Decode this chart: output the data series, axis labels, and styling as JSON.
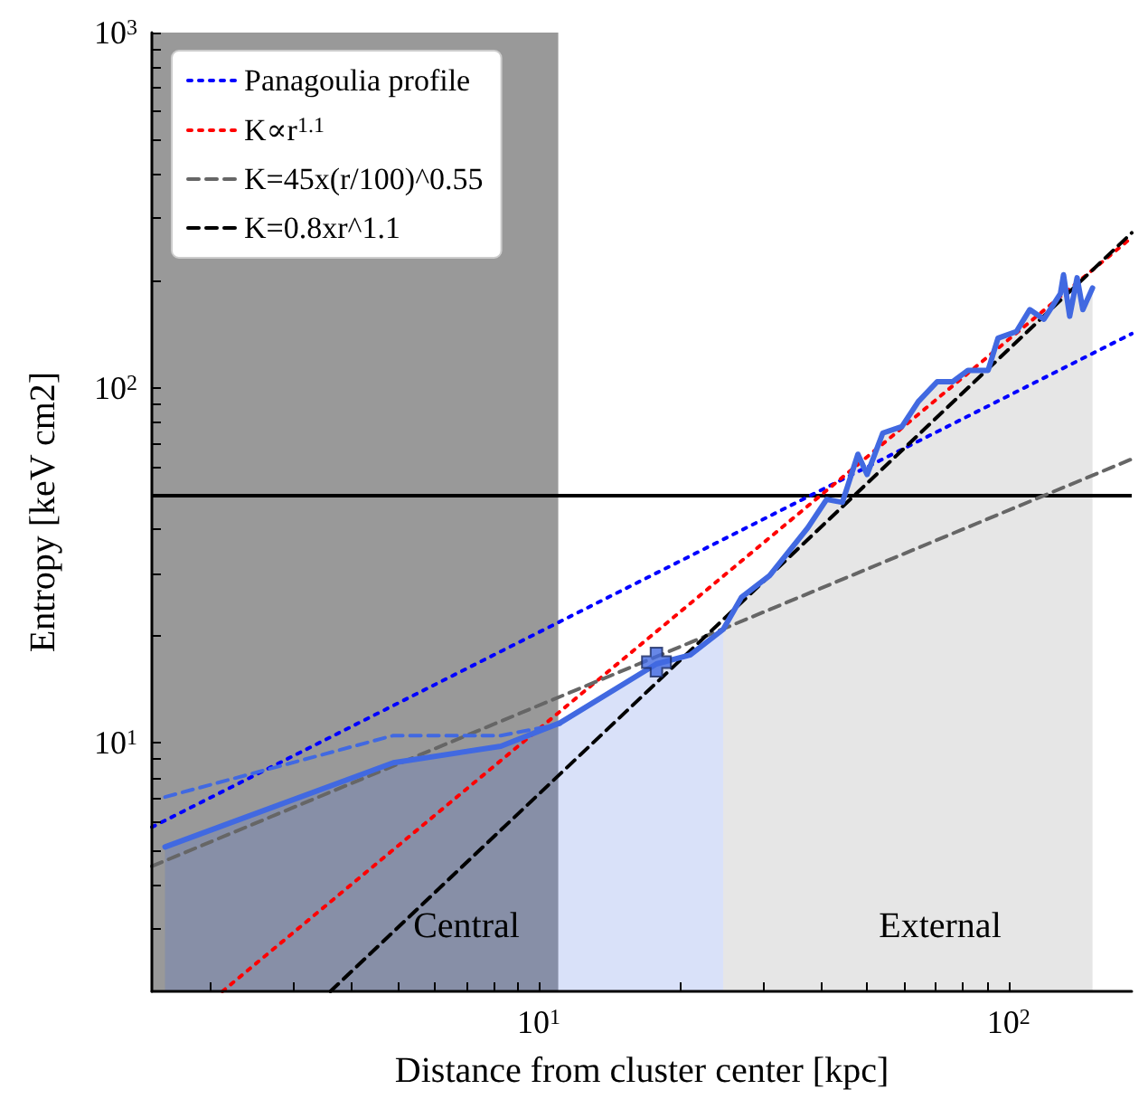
{
  "chart_data": {
    "type": "line",
    "xlabel": "Distance from cluster center [kpc]",
    "ylabel": "Entropy [keV cm2]",
    "log": "xy",
    "xlim": [
      1.5,
      183
    ],
    "ylim": [
      2,
      1000
    ],
    "xticks": [
      {
        "value": 2,
        "label": null
      },
      {
        "value": 3,
        "label": null
      },
      {
        "value": 4,
        "label": null
      },
      {
        "value": 5,
        "label": null
      },
      {
        "value": 6,
        "label": null
      },
      {
        "value": 7,
        "label": null
      },
      {
        "value": 8,
        "label": null
      },
      {
        "value": 9,
        "label": null
      },
      {
        "value": 10,
        "label": "10$^{1}$"
      },
      {
        "value": 20,
        "label": null
      },
      {
        "value": 30,
        "label": null
      },
      {
        "value": 40,
        "label": null
      },
      {
        "value": 50,
        "label": null
      },
      {
        "value": 60,
        "label": null
      },
      {
        "value": 70,
        "label": null
      },
      {
        "value": 80,
        "label": null
      },
      {
        "value": 90,
        "label": null
      },
      {
        "value": 100,
        "label": "10$^{2}$"
      }
    ],
    "yticks": [
      {
        "value": 3,
        "label": null
      },
      {
        "value": 4,
        "label": null
      },
      {
        "value": 5,
        "label": null
      },
      {
        "value": 6,
        "label": null
      },
      {
        "value": 7,
        "label": null
      },
      {
        "value": 8,
        "label": null
      },
      {
        "value": 9,
        "label": null
      },
      {
        "value": 10,
        "label": "10$^{1}$"
      },
      {
        "value": 20,
        "label": null
      },
      {
        "value": 30,
        "label": null
      },
      {
        "value": 40,
        "label": null
      },
      {
        "value": 50,
        "label": null
      },
      {
        "value": 60,
        "label": null
      },
      {
        "value": 70,
        "label": null
      },
      {
        "value": 80,
        "label": null
      },
      {
        "value": 90,
        "label": null
      },
      {
        "value": 100,
        "label": "10$^{2}$"
      },
      {
        "value": 200,
        "label": null
      },
      {
        "value": 300,
        "label": null
      },
      {
        "value": 400,
        "label": null
      },
      {
        "value": 500,
        "label": null
      },
      {
        "value": 600,
        "label": null
      },
      {
        "value": 700,
        "label": null
      },
      {
        "value": 800,
        "label": null
      },
      {
        "value": 900,
        "label": null
      },
      {
        "value": 1000,
        "label": "10$^{3}$"
      }
    ],
    "grid": false,
    "legend": "top left",
    "bands": [
      {
        "axis": "x",
        "from": 1.5,
        "to": 11,
        "color": "#999999"
      }
    ],
    "ref_lines": [
      {
        "axis": "y",
        "value": 50,
        "color": "#000000",
        "line_style": "solid"
      }
    ],
    "annotations": [
      "Central",
      "External"
    ],
    "series": [
      {
        "type": "area",
        "color": "#4169e1",
        "x": [
          1.6,
          4.9,
          8.3,
          11.1,
          17.8,
          21,
          24.7
        ],
        "values": [
          5.1,
          8.8,
          9.8,
          11.4,
          16.7,
          17.7,
          20.9
        ]
      },
      {
        "type": "area",
        "color": "#808080",
        "x": [
          24.7,
          27,
          31,
          37.4,
          41,
          44.3,
          47.8,
          50,
          54,
          59.3,
          64.3,
          70.5,
          76,
          82,
          90.5,
          95,
          104,
          111,
          119,
          129,
          131,
          135,
          140,
          144,
          151
        ],
        "values": [
          20.9,
          25.7,
          29.6,
          40.4,
          48.5,
          47.6,
          65,
          57,
          74.6,
          77.8,
          91.5,
          104,
          104,
          112,
          112,
          138,
          144,
          166,
          156,
          184,
          208,
          159,
          204,
          166,
          191
        ]
      },
      {
        "name": "Panagoulia profile",
        "color": "#0000ff",
        "line_style": "dotted",
        "x": [
          1.5,
          183
        ],
        "values": [
          5.8,
          142
        ]
      },
      {
        "name": "K∝r$^{1.1}$",
        "color": "#ff0000",
        "line_style": "dotted",
        "x": [
          2.12,
          183
        ],
        "values": [
          2,
          265
        ]
      },
      {
        "name": "K=45x(r/100)^0.55",
        "color": "#666666",
        "line_style": "dashed",
        "x": [
          1.5,
          183
        ],
        "values": [
          4.5,
          63
        ]
      },
      {
        "name": "K=0.8xr^1.1",
        "color": "#000000",
        "line_style": "dashed",
        "x": [
          3.6,
          183
        ],
        "values": [
          2,
          273
        ]
      },
      {
        "color": "#4169e1",
        "line_style": "dashed",
        "x": [
          1.6,
          4.9,
          8.3,
          11.1
        ],
        "values": [
          7.05,
          10.5,
          10.5,
          11.3
        ]
      },
      {
        "color": "#4169e1",
        "line_style": "solid",
        "x": [
          1.6,
          4.9,
          8.3,
          11.1,
          17.8,
          21,
          24.7,
          27,
          31,
          37.4,
          41,
          44.3,
          47.8,
          50,
          54,
          59.3,
          64.3,
          70.5,
          76,
          82,
          90.5,
          95,
          104,
          111,
          119,
          129,
          131,
          135,
          140,
          144,
          151
        ],
        "values": [
          5.1,
          8.8,
          9.8,
          11.4,
          16.7,
          17.7,
          20.9,
          25.7,
          29.6,
          40.4,
          48.5,
          47.6,
          65,
          57,
          74.6,
          77.8,
          91.5,
          104,
          104,
          112,
          112,
          138,
          144,
          166,
          156,
          184,
          208,
          159,
          204,
          166,
          191
        ]
      },
      {
        "type": "scatter",
        "color": "#4169e1",
        "marker": "cross",
        "x": [
          17.8
        ],
        "values": [
          16.9
        ]
      }
    ]
  }
}
